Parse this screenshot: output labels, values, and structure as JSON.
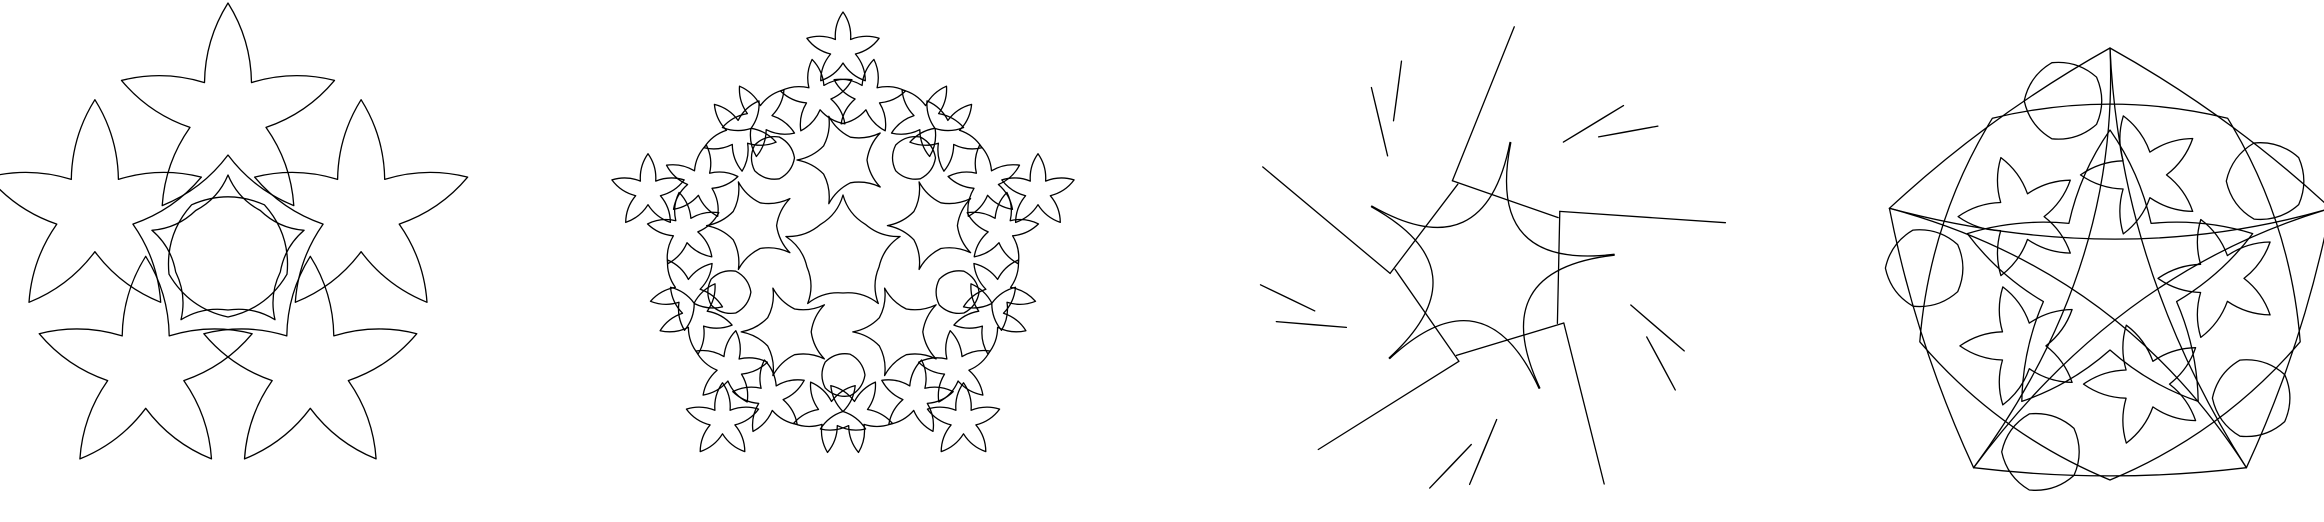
{
  "figures": [
    {
      "id": "star-koch-level-1",
      "kind": "koch",
      "depth": 1,
      "concave": true
    },
    {
      "id": "star-koch-level-2",
      "kind": "koch",
      "depth": 2,
      "concave": true
    },
    {
      "id": "star-leaf-tangle",
      "kind": "leaves",
      "depth": 1,
      "concave": false
    },
    {
      "id": "star-pentagon-mesh",
      "kind": "mesh",
      "depth": 1,
      "concave": true
    }
  ],
  "colors": {
    "background": "#ffffff",
    "stroke": "#000000"
  }
}
